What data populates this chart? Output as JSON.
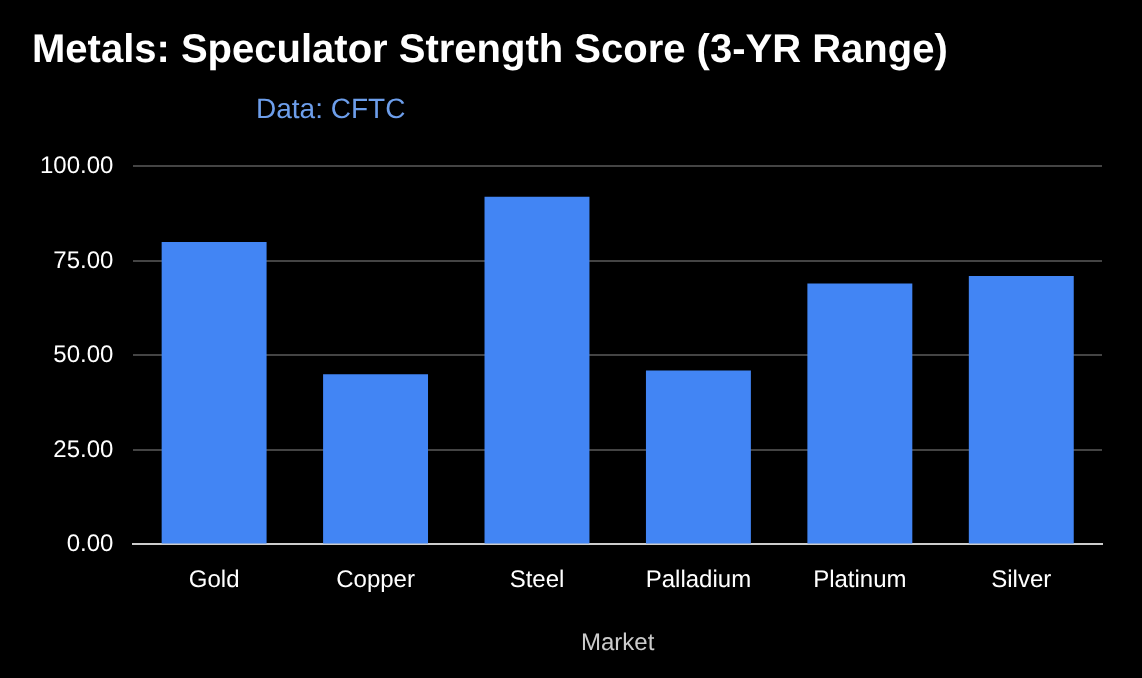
{
  "chart_data": {
    "type": "bar",
    "title": "Metals: Speculator Strength Score (3-YR Range)",
    "subtitle": "Data: CFTC",
    "xlabel": "Market",
    "categories": [
      "Gold",
      "Copper",
      "Steel",
      "Palladium",
      "Platinum",
      "Silver"
    ],
    "values": [
      80,
      45,
      92,
      46,
      69,
      71
    ],
    "color": "#4285f4",
    "ylim": [
      0,
      100
    ],
    "yticks": [
      {
        "value": 0,
        "label": "0.00"
      },
      {
        "value": 25,
        "label": "25.00"
      },
      {
        "value": 50,
        "label": "50.00"
      },
      {
        "value": 75,
        "label": "75.00"
      },
      {
        "value": 100,
        "label": "100.00"
      }
    ],
    "grid": "y",
    "legend": false
  }
}
